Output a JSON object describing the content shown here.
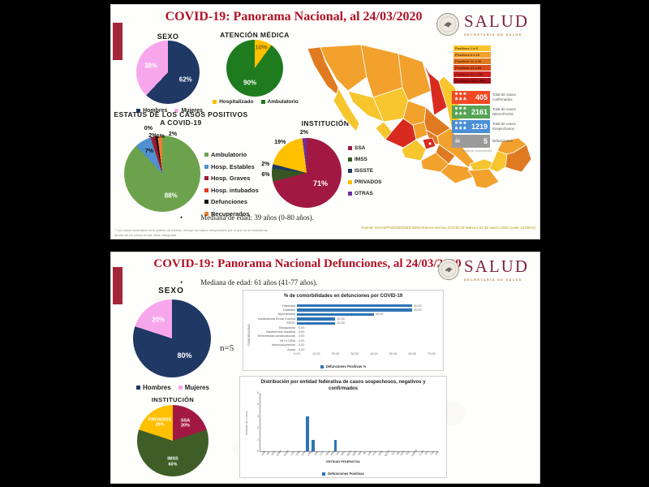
{
  "top_panel": {
    "title": "COVID-19: Panorama Nacional, al 24/03/2020",
    "logo": {
      "name": "SALUD",
      "subtitle": "SECRETARÍA DE SALUD"
    },
    "mediana": "Mediana de edad: 39 años (0-80 años).",
    "footnote": "* Los casos mostrados en la gráfica de estatus, incluye los casos recuperados por lo que no se consideran dentro de los casos en las otras categorías",
    "fuente": "Fuente: SSA/SPPS/DGE/DIE/InDRE/Informe técnico COVID-19 /México-24 de marzo 2020 (corte 13:00hrs)",
    "stats_note": "Pendiente antecedentes",
    "map_legend": [
      {
        "label": "Positivos 1 a 5",
        "color": "#f7c52e"
      },
      {
        "label": "Positivos 6 a 10",
        "color": "#f2a12c"
      },
      {
        "label": "Positivos 11 a 20",
        "color": "#e07a20"
      },
      {
        "label": "Positivos 21 a 50",
        "color": "#d94f1e"
      },
      {
        "label": "Positivos 51 a 200",
        "color": "#ce2420"
      },
      {
        "label": "Positivos 201 a 500",
        "color": "#a81318"
      }
    ],
    "stats": [
      {
        "value": "405",
        "label": "Total de casos confirmados",
        "color": "#f04923",
        "icon": "people-icon"
      },
      {
        "value": "2161",
        "label": "Total de casos NEGATIVOS",
        "color": "#56a556",
        "icon": "people-icon"
      },
      {
        "value": "1219",
        "label": "Total de casos Sospechosos",
        "color": "#4b8fd5",
        "icon": "people-icon"
      },
      {
        "value": "5",
        "label": "Defunciones",
        "color": "#9a9a9a",
        "icon": "skull-icon"
      }
    ]
  },
  "bottom_panel": {
    "title": "COVID-19: Panorama Nacional Defunciones, al 24/03/2020",
    "logo": {
      "name": "SALUD",
      "subtitle": "SECRETARÍA DE SALUD"
    },
    "mediana": "Mediana de edad: 61 años (41-77 años).",
    "n_label": "n=5"
  },
  "chart_data": [
    {
      "id": "sexo_nacional",
      "type": "pie",
      "title": "SEXO",
      "slices": [
        {
          "name": "Hombres",
          "value": 62,
          "color": "#1f3864",
          "label": "62%",
          "k": 0.6,
          "fs": 8
        },
        {
          "name": "Mujeres",
          "value": 38,
          "color": "#f7a6ec",
          "label": "38%",
          "k": 0.58,
          "fs": 8
        }
      ]
    },
    {
      "id": "atencion_medica",
      "type": "pie",
      "title": "ATENCIÓN MÉDICA",
      "slices": [
        {
          "name": "Hospitalizado",
          "value": 10,
          "color": "#ffc000",
          "label": "10%",
          "k": 0.74,
          "fs": 7.5,
          "label_color": "#7f6000"
        },
        {
          "name": "Ambulatorio",
          "value": 90,
          "color": "#1e7c1e",
          "label": "90%",
          "k": 0.55,
          "fs": 8
        }
      ]
    },
    {
      "id": "estatus",
      "type": "pie",
      "title": "ESTATUS DE LOS CASOS POSITIVOS A COVID-19",
      "slices": [
        {
          "name": "Ambulatorio",
          "value": 88,
          "color": "#6ca24c",
          "label": "88%",
          "k": 0.62,
          "fs": 8
        },
        {
          "name": "Hosp. Estables",
          "value": 7,
          "color": "#4f90d0",
          "label": "7%",
          "k": 0.67,
          "label_color": "#111"
        },
        {
          "name": "Hosp. Graves",
          "value": 2,
          "color": "#9e1b32",
          "label": "2%",
          "k": 1.0,
          "label_color": "#111"
        },
        {
          "name": "Hosp. intubados",
          "value": 0,
          "color": "#e8391d",
          "label": "0%",
          "k": 1.15,
          "label_color": "#111",
          "dx": -7,
          "dy": -2
        },
        {
          "name": "Defunciones",
          "value": 1,
          "color": "#111111",
          "label": "1%",
          "k": 0.96,
          "label_color": "#111",
          "dx": 5
        },
        {
          "name": "Recuperados",
          "value": 2,
          "color": "#ed7d31",
          "label": "2%",
          "k": 1.02,
          "label_color": "#111",
          "dx": 16
        }
      ]
    },
    {
      "id": "institucion_nacional",
      "type": "pie",
      "title": "INSTITUCIÓN",
      "slices": [
        {
          "name": "SSA",
          "value": 71,
          "color": "#a11942",
          "label": "71%",
          "k": 0.5,
          "fs": 9
        },
        {
          "name": "IMSS",
          "value": 6,
          "color": "#375623",
          "label": "6%",
          "k": 1.18,
          "label_color": "#111"
        },
        {
          "name": "ISSSTE",
          "value": 2,
          "color": "#1f3864",
          "label": "2%",
          "k": 1.2,
          "label_color": "#111"
        },
        {
          "name": "PRIVADOS",
          "value": 19,
          "color": "#ffc000",
          "label": "19%",
          "k": 1.15,
          "label_color": "#111"
        },
        {
          "name": "OTRAS",
          "value": 2,
          "color": "#7030a0",
          "label": "2%",
          "k": 1.15,
          "label_color": "#111"
        }
      ]
    },
    {
      "id": "sexo_defunciones",
      "type": "pie",
      "title": "SEXO",
      "slices": [
        {
          "name": "Hombres",
          "value": 80,
          "color": "#1f3864",
          "label": "80%",
          "k": 0.55,
          "fs": 9
        },
        {
          "name": "Mujeres",
          "value": 20,
          "color": "#f7a6ec",
          "label": "20%",
          "k": 0.6,
          "fs": 8
        }
      ]
    },
    {
      "id": "institucion_defunciones",
      "type": "pie",
      "title": "INSTITUCIÓN",
      "slices": [
        {
          "name": "SSA",
          "value": 20,
          "color": "#a11942",
          "label": "20%",
          "k": 0.6,
          "fs": 5.5,
          "name_show": true
        },
        {
          "name": "IMSS",
          "value": 60,
          "color": "#3f5e27",
          "label": "60%",
          "k": 0.6,
          "fs": 5.5,
          "name_show": true
        },
        {
          "name": "PRIVADOS",
          "value": 20,
          "color": "#ffc000",
          "label": "20%",
          "k": 0.62,
          "fs": 5.5,
          "name_show": true
        }
      ]
    },
    {
      "id": "comorbilidades",
      "type": "bar",
      "title": "% de comorbilidades en defunciones por COVID-19",
      "ylabel": "COMORBILIDAD",
      "categories": [
        "Obesidad",
        "Diabetes",
        "Hipertensión",
        "Insuficiencia Renal Crónica",
        "EPOC",
        "Tabaquismo",
        "Insuficiencia hepática",
        "Enfermedad cardiovascular",
        "VIH o SIDA",
        "Inmunosupresión",
        "Asma"
      ],
      "values": [
        60,
        60,
        40,
        20,
        20,
        0,
        0,
        0,
        0,
        0,
        0
      ],
      "value_labels": [
        "60.00",
        "60.00",
        "40.00",
        "20.00",
        "20.00",
        "0.00",
        "0.00",
        "0.00",
        "0.00",
        "0.00",
        "0.00"
      ],
      "xticks": [
        "0.00",
        "10.00",
        "20.00",
        "30.00",
        "40.00",
        "50.00",
        "60.00",
        "70.00"
      ],
      "xmax": 70,
      "legend": "Defunciones Positivas %",
      "bar_color": "#2e74b5"
    },
    {
      "id": "entidades",
      "type": "bar",
      "title": "Distribución por entidad federativa de casos sospechosos, negativos y confirmados",
      "xlabel": "ENTIDAD FEDERATIVA",
      "ylabel": "NÚMERO DE CASOS",
      "categories": [
        "AGS",
        "BC",
        "BCS",
        "CAMP",
        "COAH",
        "COL",
        "CHIS",
        "CHIH",
        "CDMX",
        "DGO",
        "GTO",
        "GRO",
        "HGO",
        "JAL",
        "MEX",
        "MICH",
        "MOR",
        "NAY",
        "NL",
        "OAX",
        "PUE",
        "QRO",
        "QROO",
        "SLP",
        "SIN",
        "SON",
        "TAB",
        "TAMPS",
        "TLAX",
        "VER",
        "YUC",
        "ZAC"
      ],
      "values": [
        0,
        0,
        0,
        0,
        0,
        0,
        0,
        0,
        3,
        1,
        0,
        0,
        0,
        1,
        0,
        0,
        0,
        0,
        0,
        0,
        0,
        0,
        0,
        0,
        0,
        0,
        0,
        0,
        0,
        0,
        0,
        0
      ],
      "yticks": [
        0,
        1,
        2,
        3,
        4,
        5
      ],
      "ymax": 5,
      "legend": "Defunciones Positivas",
      "bar_color": "#2e74b5"
    }
  ]
}
